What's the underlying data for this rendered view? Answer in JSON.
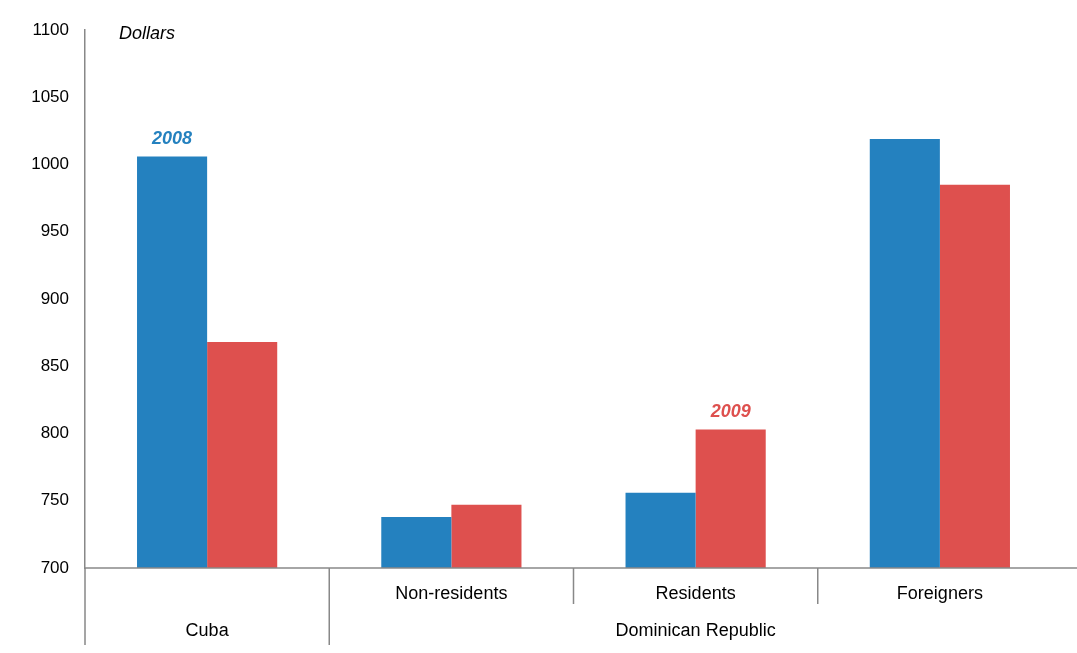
{
  "chart_data": {
    "type": "bar",
    "ylabel": "Dollars",
    "categories": [
      null,
      "Non-residents",
      "Residents",
      "Foreigners"
    ],
    "series": [
      {
        "color": "#2481bf",
        "values": [
          1006,
          738,
          756,
          1019
        ]
      },
      {
        "color": "#de504e",
        "values": [
          868,
          747,
          803,
          985
        ]
      }
    ],
    "ylim": [
      700,
      1100
    ],
    "yticks": [
      700,
      750,
      800,
      850,
      900,
      950,
      1000,
      1050,
      1100
    ],
    "grid": false,
    "legend": false,
    "annotations": [
      {
        "text": "2008",
        "y": 1006
      },
      {
        "text": "2009",
        "x": "Residents",
        "y": 803
      },
      "Cuba",
      "Dominican Republic"
    ]
  }
}
